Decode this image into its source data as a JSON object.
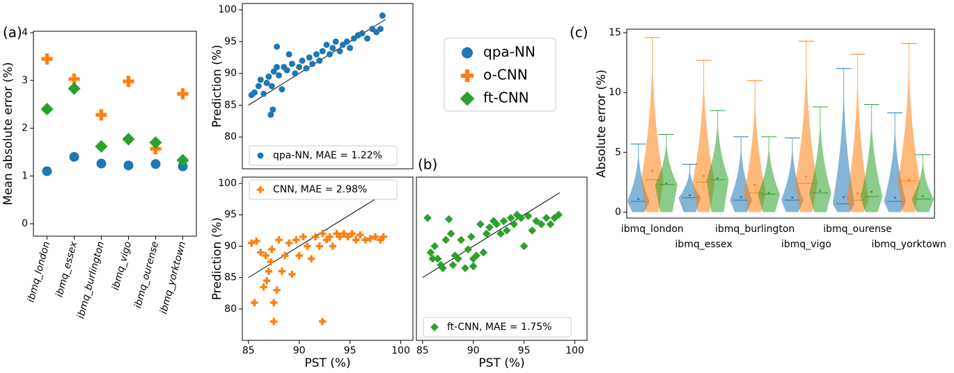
{
  "chart_data": [
    {
      "type": "dot",
      "panel_label": "(a)",
      "ylabel": "Mean absolute error (%)",
      "categories": [
        "ibmq_london",
        "ibmq_essex",
        "ibmq_burlington",
        "ibmq_vigo",
        "ibmq_ourense",
        "ibmq_yorktown"
      ],
      "ylim": [
        -0.26,
        4.03
      ],
      "yticks": [
        0,
        1,
        2,
        3,
        4
      ],
      "series": [
        {
          "name": "qpa-NN",
          "color": "#1f77b4",
          "marker": "circle",
          "values": [
            1.1,
            1.4,
            1.26,
            1.22,
            1.25,
            1.2
          ]
        },
        {
          "name": "o-CNN",
          "color": "#ff7f0e",
          "marker": "plus",
          "values": [
            3.45,
            3.03,
            2.28,
            2.98,
            1.57,
            2.72
          ]
        },
        {
          "name": "ft-CNN",
          "color": "#2ca02c",
          "marker": "diamond",
          "values": [
            2.4,
            2.83,
            1.62,
            1.77,
            1.7,
            1.33
          ]
        }
      ]
    },
    {
      "type": "scatter",
      "ylabel": "Prediction (%)",
      "xlim": [
        84.4,
        101.2
      ],
      "ylim": [
        75,
        101
      ],
      "yticks": [
        80,
        85,
        90,
        95,
        100
      ],
      "reference_line": [
        85,
        98.5
      ],
      "legend": "lower left",
      "series": [
        {
          "name": "qpa-NN, MAE = 1.22%",
          "color": "#1f77b4",
          "marker": "circle",
          "x": [
            85.3,
            85.6,
            86,
            86.2,
            86.5,
            86.8,
            87,
            87.3,
            87.5,
            87.8,
            88,
            88.3,
            88.5,
            88.8,
            89,
            89.3,
            89.6,
            90,
            90.3,
            90.7,
            91,
            91.3,
            91.7,
            92,
            92.3,
            92.7,
            93,
            93.3,
            93.6,
            94,
            94.3,
            94.7,
            95,
            95.4,
            95.8,
            96.2,
            96.7,
            97.2,
            97.6,
            98,
            98.2,
            87.2,
            87.4,
            87.8
          ],
          "values": [
            86.6,
            87,
            88,
            89,
            86.8,
            88.5,
            89.5,
            88,
            90.3,
            91,
            89.7,
            87.5,
            91,
            90.5,
            93,
            91.5,
            90,
            91,
            92,
            90.8,
            92.5,
            91.5,
            93,
            92,
            93.5,
            94.5,
            93,
            94,
            95,
            93.5,
            94.5,
            95,
            94,
            95.5,
            96,
            96.3,
            95.5,
            97,
            96.5,
            97,
            99.1,
            83.5,
            84.3,
            94.2
          ]
        }
      ]
    },
    {
      "type": "scatter",
      "ylabel": "Prediction (%)",
      "xlabel": "PST (%)",
      "xlim": [
        84.4,
        101.2
      ],
      "ylim": [
        75,
        101
      ],
      "xticks": [
        85,
        90,
        95,
        100
      ],
      "yticks": [
        80,
        85,
        90,
        95,
        100
      ],
      "reference_line": [
        85,
        98.5
      ],
      "legend": "upper left",
      "series": [
        {
          "name": "CNN, MAE = 2.98%",
          "color": "#ff7f0e",
          "marker": "plus",
          "x": [
            85.3,
            85.6,
            85.8,
            86.2,
            86.5,
            86.8,
            87,
            87.3,
            87.5,
            87.5,
            87.8,
            88,
            88.3,
            88.6,
            89,
            89.3,
            89.7,
            90,
            90.4,
            90.8,
            91.2,
            91.6,
            92,
            92.3,
            92.3,
            92.7,
            93,
            93.3,
            93.7,
            94,
            94.4,
            94.8,
            95.2,
            95.6,
            96,
            96.5,
            97,
            97.5,
            98,
            98.3,
            86.7,
            87.2
          ],
          "values": [
            90.5,
            81,
            90.8,
            89,
            83.5,
            84.5,
            86,
            89.5,
            78,
            81,
            83,
            91,
            86,
            88.5,
            90.5,
            85.5,
            91,
            88.5,
            91.5,
            90,
            88,
            91.5,
            90,
            78,
            92,
            91,
            91.5,
            90,
            92,
            91.5,
            92,
            91.5,
            92,
            91,
            91.8,
            91,
            91.2,
            91.5,
            91,
            91.5,
            88.5,
            87.5
          ]
        }
      ]
    },
    {
      "type": "scatter",
      "panel_label": "(b)",
      "xlabel": "PST (%)",
      "xlim": [
        84.4,
        101.2
      ],
      "ylim": [
        75,
        101
      ],
      "xticks": [
        85,
        90,
        95,
        100
      ],
      "reference_line": [
        85,
        98.5
      ],
      "legend": "lower left",
      "series": [
        {
          "name": "ft-CNN, MAE = 1.75%",
          "color": "#2ca02c",
          "marker": "diamond",
          "x": [
            85.5,
            85.8,
            86.2,
            86.5,
            86.8,
            87,
            87.3,
            87.6,
            88,
            88.2,
            88.5,
            88.8,
            89.2,
            89.5,
            89.8,
            90,
            90.3,
            90.7,
            91,
            91.3,
            91.6,
            92,
            92.3,
            92.7,
            93,
            93.3,
            93.7,
            94,
            94.3,
            94.7,
            95,
            95.4,
            95.8,
            96.2,
            96.7,
            97.2,
            97.6,
            98,
            98.4,
            86,
            87.8,
            90
          ],
          "values": [
            94.5,
            89,
            90,
            88,
            87,
            86.5,
            91,
            94.3,
            87,
            88.5,
            88,
            91,
            86.5,
            89.5,
            91.5,
            88,
            88.5,
            93.5,
            89,
            92,
            93,
            94,
            93.5,
            92,
            94,
            92.5,
            94.5,
            93.5,
            95,
            94.5,
            90,
            94.8,
            92.5,
            94,
            93.5,
            94.5,
            93.5,
            94.5,
            95,
            88,
            92,
            86.8
          ]
        }
      ]
    },
    {
      "type": "violin",
      "panel_label": "(c)",
      "ylabel": "Absolute error (%)",
      "categories": [
        "ibmq_london",
        "ibmq_essex",
        "ibmq_burlington",
        "ibmq_vigo",
        "ibmq_ourense",
        "ibmq_yorktown"
      ],
      "ylim": [
        -0.5,
        15.3
      ],
      "yticks": [
        0,
        5,
        10,
        15
      ],
      "series": [
        {
          "color": "#1f77b4",
          "max": [
            5.7,
            4.0,
            6.3,
            6.2,
            12.0,
            8.3
          ],
          "median": [
            0.9,
            1.2,
            1.0,
            1.0,
            0.7,
            0.9
          ],
          "mean": [
            1.1,
            1.4,
            1.26,
            1.22,
            1.25,
            1.2
          ]
        },
        {
          "color": "#ff7f0e",
          "max": [
            14.6,
            12.7,
            11.0,
            14.3,
            13.2,
            14.1
          ],
          "median": [
            2.7,
            2.5,
            1.6,
            2.4,
            1.0,
            2.6
          ],
          "mean": [
            3.45,
            3.03,
            2.28,
            2.98,
            1.57,
            2.72
          ]
        },
        {
          "color": "#2ca02c",
          "max": [
            6.5,
            8.5,
            6.3,
            8.8,
            9.0,
            4.8
          ],
          "median": [
            2.3,
            2.7,
            1.5,
            1.6,
            1.3,
            1.1
          ],
          "mean": [
            2.4,
            2.83,
            1.62,
            1.77,
            1.7,
            1.33
          ]
        }
      ]
    }
  ]
}
